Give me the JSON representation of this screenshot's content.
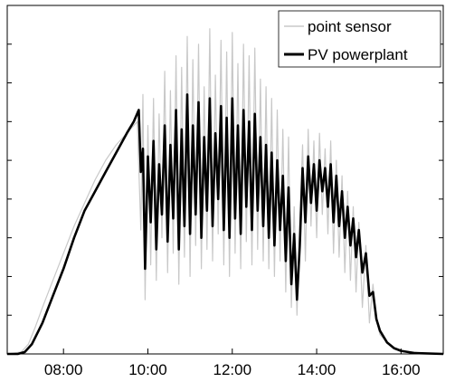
{
  "chart_data": {
    "type": "line",
    "title": "",
    "xlabel": "",
    "ylabel": "",
    "xlim": [
      "06:40",
      "17:00"
    ],
    "ylim": [
      0,
      9
    ],
    "x_ticks": [
      "08:00",
      "10:00",
      "12:00",
      "14:00",
      "16:00"
    ],
    "y_ticks": [
      1,
      2,
      3,
      4,
      5,
      6,
      7,
      8
    ],
    "y_tick_labels_shown": false,
    "grid": false,
    "legend_position": "top-right",
    "series": [
      {
        "name": "point sensor",
        "color": "#c8c8c8",
        "points": [
          [
            "06:40",
            0
          ],
          [
            "07:00",
            0.05
          ],
          [
            "07:10",
            0.25
          ],
          [
            "07:20",
            0.7
          ],
          [
            "07:30",
            1.2
          ],
          [
            "07:45",
            1.9
          ],
          [
            "08:00",
            2.6
          ],
          [
            "08:15",
            3.3
          ],
          [
            "08:30",
            3.9
          ],
          [
            "08:45",
            4.5
          ],
          [
            "09:00",
            5.0
          ],
          [
            "09:15",
            5.4
          ],
          [
            "09:30",
            5.7
          ],
          [
            "09:45",
            6.0
          ],
          [
            "09:50",
            3.2
          ],
          [
            "09:53",
            6.7
          ],
          [
            "09:56",
            1.4
          ],
          [
            "10:00",
            5.9
          ],
          [
            "10:04",
            2.3
          ],
          [
            "10:08",
            6.6
          ],
          [
            "10:12",
            1.9
          ],
          [
            "10:16",
            6.2
          ],
          [
            "10:20",
            3.0
          ],
          [
            "10:24",
            7.3
          ],
          [
            "10:28",
            2.1
          ],
          [
            "10:32",
            6.8
          ],
          [
            "10:36",
            2.6
          ],
          [
            "10:40",
            7.7
          ],
          [
            "10:44",
            1.8
          ],
          [
            "10:48",
            7.4
          ],
          [
            "10:52",
            2.5
          ],
          [
            "10:56",
            8.2
          ],
          [
            "11:00",
            2.0
          ],
          [
            "11:04",
            7.6
          ],
          [
            "11:08",
            2.8
          ],
          [
            "11:12",
            8.0
          ],
          [
            "11:16",
            2.2
          ],
          [
            "11:20",
            6.9
          ],
          [
            "11:24",
            2.7
          ],
          [
            "11:28",
            8.4
          ],
          [
            "11:32",
            2.4
          ],
          [
            "11:36",
            7.2
          ],
          [
            "11:40",
            3.1
          ],
          [
            "11:44",
            8.1
          ],
          [
            "11:48",
            2.3
          ],
          [
            "11:52",
            7.8
          ],
          [
            "11:56",
            2.0
          ],
          [
            "12:00",
            8.3
          ],
          [
            "12:04",
            2.6
          ],
          [
            "12:08",
            7.5
          ],
          [
            "12:12",
            2.2
          ],
          [
            "12:16",
            8.0
          ],
          [
            "12:20",
            2.9
          ],
          [
            "12:24",
            7.7
          ],
          [
            "12:28",
            2.3
          ],
          [
            "12:32",
            7.9
          ],
          [
            "12:36",
            2.7
          ],
          [
            "12:40",
            7.1
          ],
          [
            "12:44",
            2.4
          ],
          [
            "12:48",
            6.9
          ],
          [
            "12:52",
            2.2
          ],
          [
            "12:56",
            6.6
          ],
          [
            "13:00",
            2.0
          ],
          [
            "13:04",
            6.3
          ],
          [
            "13:08",
            2.4
          ],
          [
            "13:12",
            5.8
          ],
          [
            "13:16",
            1.6
          ],
          [
            "13:20",
            5.6
          ],
          [
            "13:24",
            1.2
          ],
          [
            "13:28",
            3.8
          ],
          [
            "13:32",
            1.0
          ],
          [
            "13:36",
            3.4
          ],
          [
            "13:40",
            5.4
          ],
          [
            "13:44",
            2.4
          ],
          [
            "13:48",
            5.8
          ],
          [
            "13:52",
            3.3
          ],
          [
            "13:56",
            5.5
          ],
          [
            "14:00",
            3.0
          ],
          [
            "14:04",
            5.7
          ],
          [
            "14:08",
            3.6
          ],
          [
            "14:12",
            5.3
          ],
          [
            "14:16",
            3.1
          ],
          [
            "14:20",
            5.5
          ],
          [
            "14:24",
            2.6
          ],
          [
            "14:28",
            5.0
          ],
          [
            "14:32",
            2.5
          ],
          [
            "14:36",
            4.6
          ],
          [
            "14:40",
            2.1
          ],
          [
            "14:44",
            4.2
          ],
          [
            "14:48",
            1.9
          ],
          [
            "14:52",
            3.8
          ],
          [
            "14:56",
            1.6
          ],
          [
            "15:00",
            3.4
          ],
          [
            "15:05",
            1.2
          ],
          [
            "15:10",
            2.8
          ],
          [
            "15:15",
            0.8
          ],
          [
            "15:20",
            1.8
          ],
          [
            "15:25",
            0.9
          ],
          [
            "15:30",
            0.5
          ],
          [
            "15:45",
            0.2
          ],
          [
            "16:00",
            0.08
          ],
          [
            "16:30",
            0.02
          ],
          [
            "17:00",
            0
          ]
        ]
      },
      {
        "name": "PV powerplant",
        "color": "#000000",
        "points": [
          [
            "06:40",
            0
          ],
          [
            "06:55",
            0
          ],
          [
            "07:05",
            0.05
          ],
          [
            "07:15",
            0.25
          ],
          [
            "07:30",
            0.8
          ],
          [
            "07:45",
            1.5
          ],
          [
            "08:00",
            2.2
          ],
          [
            "08:15",
            3.0
          ],
          [
            "08:30",
            3.7
          ],
          [
            "08:45",
            4.2
          ],
          [
            "09:00",
            4.7
          ],
          [
            "09:15",
            5.2
          ],
          [
            "09:30",
            5.7
          ],
          [
            "09:40",
            6.0
          ],
          [
            "09:47",
            6.3
          ],
          [
            "09:50",
            4.7
          ],
          [
            "09:53",
            5.3
          ],
          [
            "09:56",
            2.2
          ],
          [
            "10:00",
            5.1
          ],
          [
            "10:04",
            3.4
          ],
          [
            "10:08",
            5.5
          ],
          [
            "10:12",
            2.7
          ],
          [
            "10:16",
            4.9
          ],
          [
            "10:20",
            3.6
          ],
          [
            "10:24",
            5.9
          ],
          [
            "10:28",
            2.9
          ],
          [
            "10:32",
            5.4
          ],
          [
            "10:36",
            3.5
          ],
          [
            "10:40",
            6.3
          ],
          [
            "10:44",
            2.7
          ],
          [
            "10:48",
            5.8
          ],
          [
            "10:52",
            3.3
          ],
          [
            "10:56",
            6.7
          ],
          [
            "11:00",
            3.1
          ],
          [
            "11:04",
            5.9
          ],
          [
            "11:08",
            3.6
          ],
          [
            "11:12",
            6.5
          ],
          [
            "11:16",
            3.0
          ],
          [
            "11:20",
            5.6
          ],
          [
            "11:24",
            3.7
          ],
          [
            "11:28",
            6.6
          ],
          [
            "11:32",
            3.3
          ],
          [
            "11:36",
            5.7
          ],
          [
            "11:40",
            4.0
          ],
          [
            "11:44",
            6.4
          ],
          [
            "11:48",
            3.2
          ],
          [
            "11:52",
            6.1
          ],
          [
            "11:56",
            3.0
          ],
          [
            "12:00",
            6.6
          ],
          [
            "12:04",
            3.5
          ],
          [
            "12:08",
            5.9
          ],
          [
            "12:12",
            3.1
          ],
          [
            "12:16",
            6.3
          ],
          [
            "12:20",
            3.8
          ],
          [
            "12:24",
            6.0
          ],
          [
            "12:28",
            3.2
          ],
          [
            "12:32",
            6.2
          ],
          [
            "12:36",
            3.7
          ],
          [
            "12:40",
            5.6
          ],
          [
            "12:44",
            3.3
          ],
          [
            "12:48",
            5.4
          ],
          [
            "12:52",
            3.0
          ],
          [
            "12:56",
            5.2
          ],
          [
            "13:00",
            2.8
          ],
          [
            "13:04",
            5.0
          ],
          [
            "13:08",
            3.2
          ],
          [
            "13:12",
            4.6
          ],
          [
            "13:16",
            2.4
          ],
          [
            "13:20",
            4.3
          ],
          [
            "13:24",
            1.8
          ],
          [
            "13:28",
            3.1
          ],
          [
            "13:32",
            1.4
          ],
          [
            "13:36",
            2.8
          ],
          [
            "13:40",
            4.8
          ],
          [
            "13:44",
            3.4
          ],
          [
            "13:48",
            5.1
          ],
          [
            "13:52",
            3.9
          ],
          [
            "13:56",
            4.9
          ],
          [
            "14:00",
            3.7
          ],
          [
            "14:04",
            5.0
          ],
          [
            "14:08",
            4.2
          ],
          [
            "14:12",
            4.8
          ],
          [
            "14:16",
            3.8
          ],
          [
            "14:20",
            4.9
          ],
          [
            "14:24",
            3.4
          ],
          [
            "14:28",
            4.6
          ],
          [
            "14:32",
            3.3
          ],
          [
            "14:36",
            4.2
          ],
          [
            "14:40",
            3.0
          ],
          [
            "14:44",
            3.8
          ],
          [
            "14:48",
            2.8
          ],
          [
            "14:52",
            3.5
          ],
          [
            "14:56",
            2.5
          ],
          [
            "15:00",
            3.2
          ],
          [
            "15:05",
            2.1
          ],
          [
            "15:10",
            2.6
          ],
          [
            "15:15",
            1.5
          ],
          [
            "15:20",
            1.6
          ],
          [
            "15:25",
            0.9
          ],
          [
            "15:30",
            0.6
          ],
          [
            "15:40",
            0.3
          ],
          [
            "15:50",
            0.15
          ],
          [
            "16:00",
            0.08
          ],
          [
            "16:20",
            0.02
          ],
          [
            "17:00",
            0
          ]
        ]
      }
    ]
  }
}
